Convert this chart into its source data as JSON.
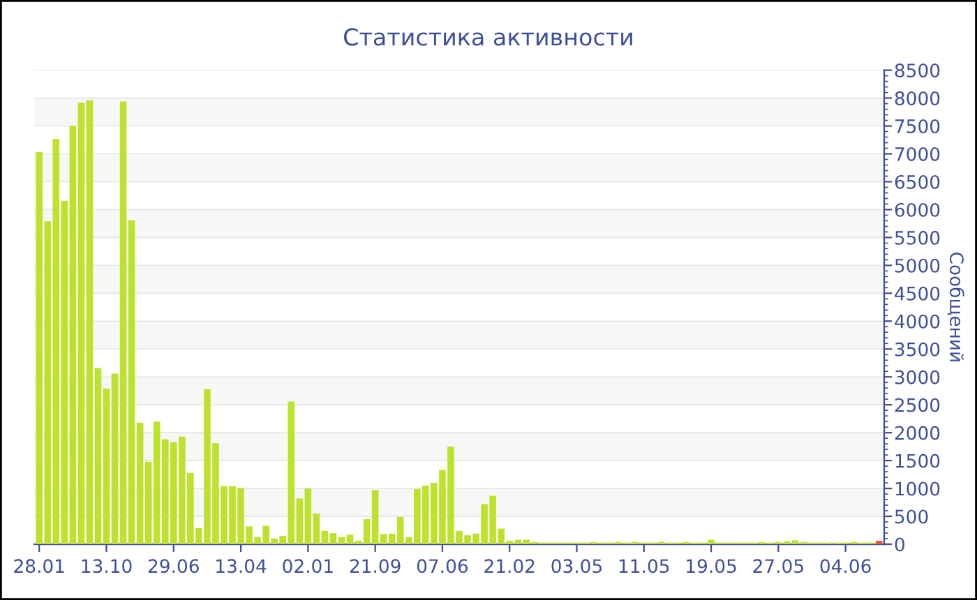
{
  "chart_data": {
    "type": "bar",
    "title": "Статистика активности",
    "ylabel": "Сообщений",
    "categories": [
      "28.01",
      null,
      null,
      null,
      null,
      null,
      null,
      null,
      "13.10",
      null,
      null,
      null,
      null,
      null,
      null,
      null,
      "29.06",
      null,
      null,
      null,
      null,
      null,
      null,
      null,
      "13.04",
      null,
      null,
      null,
      null,
      null,
      null,
      null,
      "02.01",
      null,
      null,
      null,
      null,
      null,
      null,
      null,
      "21.09",
      null,
      null,
      null,
      null,
      null,
      null,
      null,
      "07.06",
      null,
      null,
      null,
      null,
      null,
      null,
      null,
      "21.02",
      null,
      null,
      null,
      null,
      null,
      null,
      null,
      "03.05",
      null,
      null,
      null,
      null,
      null,
      null,
      null,
      "11.05",
      null,
      null,
      null,
      null,
      null,
      null,
      null,
      "19.05",
      null,
      null,
      null,
      null,
      null,
      null,
      null,
      "27.05",
      null,
      null,
      null,
      null,
      null,
      null,
      null,
      "04.06",
      null,
      null,
      null,
      null
    ],
    "values": [
      7030,
      5790,
      7270,
      6160,
      7500,
      7920,
      7960,
      3160,
      2790,
      3060,
      7940,
      5810,
      2180,
      1480,
      2200,
      1880,
      1830,
      1930,
      1280,
      290,
      2780,
      1810,
      1040,
      1040,
      1010,
      320,
      130,
      330,
      100,
      150,
      2560,
      820,
      1000,
      550,
      240,
      200,
      130,
      170,
      60,
      450,
      970,
      180,
      190,
      490,
      130,
      990,
      1050,
      1100,
      1330,
      1750,
      240,
      160,
      190,
      720,
      870,
      280,
      60,
      80,
      80,
      40,
      30,
      30,
      30,
      30,
      30,
      30,
      40,
      30,
      30,
      40,
      30,
      40,
      30,
      30,
      40,
      30,
      30,
      40,
      30,
      30,
      80,
      30,
      30,
      30,
      30,
      30,
      40,
      30,
      40,
      50,
      70,
      40,
      30,
      30,
      30,
      30,
      30,
      40,
      30,
      30,
      60
    ],
    "colors": [
      "#bde22e",
      "#bde22e",
      "#bde22e",
      "#bde22e",
      "#bde22e",
      "#bde22e",
      "#bde22e",
      "#bde22e",
      "#bde22e",
      "#bde22e",
      "#bde22e",
      "#bde22e",
      "#bde22e",
      "#bde22e",
      "#bde22e",
      "#bde22e",
      "#bde22e",
      "#bde22e",
      "#bde22e",
      "#bde22e",
      "#bde22e",
      "#bde22e",
      "#bde22e",
      "#bde22e",
      "#bde22e",
      "#bde22e",
      "#bde22e",
      "#bde22e",
      "#bde22e",
      "#bde22e",
      "#bde22e",
      "#bde22e",
      "#bde22e",
      "#bde22e",
      "#bde22e",
      "#bde22e",
      "#bde22e",
      "#bde22e",
      "#bde22e",
      "#bde22e",
      "#bde22e",
      "#bde22e",
      "#bde22e",
      "#bde22e",
      "#bde22e",
      "#bde22e",
      "#bde22e",
      "#bde22e",
      "#bde22e",
      "#bde22e",
      "#bde22e",
      "#bde22e",
      "#bde22e",
      "#bde22e",
      "#bde22e",
      "#bde22e",
      "#bde22e",
      "#bde22e",
      "#bde22e",
      "#bde22e",
      "#bde22e",
      "#bde22e",
      "#bde22e",
      "#bde22e",
      "#bde22e",
      "#bde22e",
      "#bde22e",
      "#bde22e",
      "#bde22e",
      "#bde22e",
      "#bde22e",
      "#bde22e",
      "#bde22e",
      "#bde22e",
      "#bde22e",
      "#bde22e",
      "#bde22e",
      "#bde22e",
      "#bde22e",
      "#bde22e",
      "#bde22e",
      "#bde22e",
      "#bde22e",
      "#bde22e",
      "#bde22e",
      "#bde22e",
      "#bde22e",
      "#bde22e",
      "#bde22e",
      "#bde22e",
      "#bde22e",
      "#bde22e",
      "#bde22e",
      "#bde22e",
      "#bde22e",
      "#bde22e",
      "#bde22e",
      "#bde22e",
      "#bde22e",
      "#bde22e",
      "#e8562a"
    ],
    "ylim": [
      0,
      8500
    ],
    "yticks": [
      0,
      500,
      1000,
      1500,
      2000,
      2500,
      3000,
      3500,
      4000,
      4500,
      5000,
      5500,
      6000,
      6500,
      7000,
      7500,
      8000,
      8500
    ],
    "grid": "y"
  }
}
